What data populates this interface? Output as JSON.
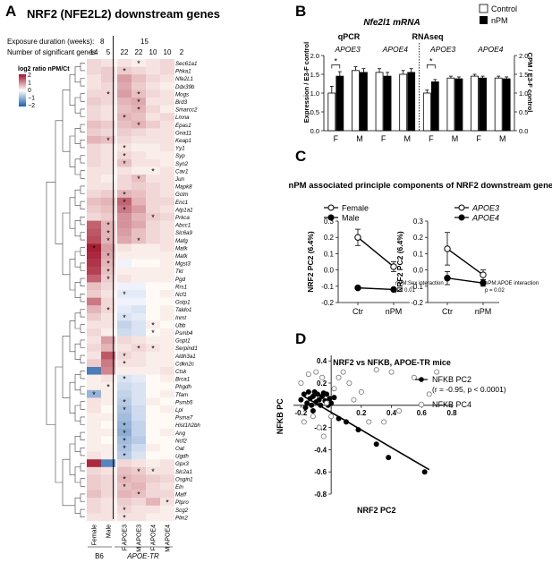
{
  "panels": {
    "a": "A",
    "b": "B",
    "c": "C",
    "d": "D"
  },
  "heatmap": {
    "title": "NRF2 (NFE2L2) downstream genes",
    "exposure_label": "Exposure duration (weeks):",
    "exposure_values": [
      "8",
      "15"
    ],
    "sig_label": "Number of significant genes:",
    "sig_counts": [
      "14",
      "5",
      "22",
      "22",
      "10",
      "10",
      "2"
    ],
    "legend_title": "log2 ratio nPM/Ct",
    "legend_ticks": [
      "2",
      "1",
      "0",
      "−1",
      "−2"
    ],
    "columns": [
      "Female",
      "Male",
      "F APOE3",
      "M APOE3",
      "F APOE4",
      "M APOE4"
    ],
    "group_b6": "B6",
    "group_tr": "APOE-TR",
    "genes": [
      "Sec61a1",
      "Phka1",
      "Nfe2L1",
      "Ddx39b",
      "Mogs",
      "Brd3",
      "Smarcc2",
      "Lmna",
      "Epas1",
      "Gna11",
      "Keap1",
      "Yy1",
      "Syp",
      "Syn2",
      "Cav1",
      "Jun",
      "Mapk8",
      "Gclm",
      "Enc1",
      "Atp1a1",
      "Prkca",
      "Abcc1",
      "Slc6a9",
      "Mafg",
      "Mafk",
      "Mafk",
      "Mgst3",
      "Tkt",
      "Pgd",
      "Rrs1",
      "Ncf1",
      "Gstp1",
      "Taldo1",
      "Inmt",
      "Ubb",
      "Psmb4",
      "Gspt1",
      "Serpind1",
      "Aldh3a1",
      "Cdkn2c",
      "Ctsk",
      "Brca1",
      "Phgdh",
      "Tfam",
      "Psmb5",
      "Lpl",
      "Psma7",
      "Hist1h2bh",
      "Ang",
      "Ncf2",
      "Oat",
      "Ugdh",
      "Gpx3",
      "Slc2a1",
      "Osgin1",
      "Eln",
      "Maff",
      "Ptpro",
      "Scg2",
      "Plin2"
    ],
    "values": [
      [
        0.3,
        0.2,
        0.2,
        0.1,
        0.2,
        0.3
      ],
      [
        0.3,
        0.4,
        0.4,
        0.3,
        0.2,
        0.3
      ],
      [
        0.2,
        0.4,
        0.8,
        0.5,
        0.3,
        0.2
      ],
      [
        0.2,
        0.3,
        0.7,
        0.4,
        0.2,
        0.1
      ],
      [
        0.3,
        0.3,
        0.8,
        0.5,
        0.3,
        0.2
      ],
      [
        0.4,
        0.3,
        0.6,
        0.7,
        0.2,
        0.2
      ],
      [
        0.3,
        0.2,
        0.5,
        0.6,
        0.3,
        0.1
      ],
      [
        0.3,
        0.2,
        0.6,
        0.5,
        0.2,
        0.3
      ],
      [
        0.5,
        0.4,
        0.5,
        0.6,
        0.4,
        0.2
      ],
      [
        0.4,
        0.3,
        0.4,
        0.3,
        0.2,
        0.2
      ],
      [
        0.6,
        0.5,
        0.3,
        0.2,
        0.2,
        0.2
      ],
      [
        0.3,
        0.2,
        0.2,
        0.1,
        0.1,
        0.2
      ],
      [
        0.3,
        0.2,
        0.3,
        0.2,
        0.1,
        0.1
      ],
      [
        0.3,
        0.2,
        0.5,
        0.2,
        0.2,
        0.1
      ],
      [
        0.2,
        0.2,
        0.2,
        0.1,
        0.1,
        0.2
      ],
      [
        0.2,
        0.1,
        0.3,
        0.5,
        0.2,
        0.2
      ],
      [
        0.2,
        0.2,
        0.3,
        0.4,
        0.3,
        0.2
      ],
      [
        0.3,
        0.4,
        0.6,
        0.5,
        0.3,
        0.2
      ],
      [
        0.5,
        0.6,
        1.3,
        0.6,
        0.3,
        0.3
      ],
      [
        0.4,
        0.5,
        1.1,
        0.8,
        0.3,
        0.2
      ],
      [
        0.3,
        0.4,
        0.9,
        0.6,
        0.4,
        0.3
      ],
      [
        1.3,
        0.6,
        0.9,
        0.7,
        0.3,
        0.2
      ],
      [
        1.4,
        0.6,
        0.8,
        0.5,
        0.3,
        0.2
      ],
      [
        1.5,
        0.6,
        0.7,
        0.5,
        0.3,
        0.2
      ],
      [
        1.9,
        0.8,
        0.2,
        0.1,
        0.1,
        0.2
      ],
      [
        1.8,
        0.7,
        0.1,
        0.1,
        0.1,
        0.1
      ],
      [
        1.7,
        0.6,
        -0.1,
        0.0,
        0.0,
        0.1
      ],
      [
        1.6,
        0.5,
        0.1,
        0.1,
        0.1,
        0.1
      ],
      [
        1.3,
        0.4,
        0.2,
        0.1,
        0.1,
        0.1
      ],
      [
        0.5,
        0.3,
        -0.1,
        -0.1,
        0.0,
        0.0
      ],
      [
        0.4,
        0.2,
        -0.2,
        -0.2,
        0.0,
        0.1
      ],
      [
        1.1,
        0.3,
        -0.1,
        -0.1,
        0.0,
        0.0
      ],
      [
        0.6,
        0.3,
        -0.2,
        -0.3,
        0.0,
        0.1
      ],
      [
        0.4,
        0.2,
        -0.3,
        -0.2,
        0.0,
        0.1
      ],
      [
        0.2,
        0.2,
        -0.5,
        -0.3,
        0.1,
        0.0
      ],
      [
        0.3,
        0.1,
        -0.4,
        -0.3,
        0.0,
        0.1
      ],
      [
        0.2,
        0.8,
        0.3,
        0.2,
        0.1,
        0.1
      ],
      [
        0.3,
        0.6,
        0.2,
        0.3,
        0.2,
        0.1
      ],
      [
        0.2,
        1.4,
        0.3,
        0.2,
        0.1,
        0.1
      ],
      [
        0.4,
        1.1,
        0.2,
        0.2,
        0.1,
        0.1
      ],
      [
        -1.6,
        1.0,
        0.1,
        0.1,
        0.1,
        0.2
      ],
      [
        0.1,
        0.2,
        -0.3,
        -0.2,
        0.0,
        0.1
      ],
      [
        0.1,
        0.1,
        -0.4,
        -0.3,
        0.0,
        0.0
      ],
      [
        -0.9,
        0.1,
        -0.5,
        -0.3,
        0.0,
        0.1
      ],
      [
        0.2,
        0.1,
        -0.6,
        -0.3,
        0.1,
        0.0
      ],
      [
        0.2,
        0.0,
        -0.7,
        -0.4,
        0.0,
        0.1
      ],
      [
        0.1,
        0.1,
        -0.8,
        -0.4,
        0.0,
        0.0
      ],
      [
        0.1,
        0.0,
        -0.9,
        -0.5,
        0.0,
        0.0
      ],
      [
        0.1,
        0.1,
        -1.0,
        -0.5,
        0.0,
        0.1
      ],
      [
        0.1,
        0.0,
        -0.8,
        -0.6,
        0.0,
        0.0
      ],
      [
        0.1,
        0.1,
        -0.7,
        -0.4,
        0.1,
        0.0
      ],
      [
        0.2,
        0.1,
        -0.6,
        -0.3,
        0.0,
        0.0
      ],
      [
        1.8,
        -1.5,
        0.3,
        0.2,
        0.1,
        0.2
      ],
      [
        0.3,
        0.2,
        0.5,
        0.4,
        0.2,
        0.2
      ],
      [
        0.4,
        0.3,
        0.6,
        0.5,
        0.4,
        0.3
      ],
      [
        0.4,
        0.3,
        0.5,
        0.6,
        0.3,
        0.2
      ],
      [
        0.5,
        0.3,
        0.6,
        0.5,
        0.3,
        0.3
      ],
      [
        0.3,
        0.2,
        0.4,
        0.3,
        0.6,
        0.2
      ],
      [
        0.3,
        0.2,
        0.3,
        0.2,
        0.2,
        0.1
      ],
      [
        0.2,
        0.2,
        0.2,
        0.2,
        0.1,
        0.1
      ]
    ],
    "stars": [
      [
        0,
        3
      ],
      [
        1,
        2
      ],
      [
        4,
        1
      ],
      [
        4,
        3
      ],
      [
        5,
        3
      ],
      [
        6,
        3
      ],
      [
        7,
        2
      ],
      [
        8,
        3
      ],
      [
        10,
        1
      ],
      [
        11,
        2
      ],
      [
        12,
        2
      ],
      [
        13,
        2
      ],
      [
        14,
        4
      ],
      [
        15,
        3
      ],
      [
        17,
        2
      ],
      [
        18,
        2
      ],
      [
        19,
        2
      ],
      [
        20,
        4
      ],
      [
        21,
        1
      ],
      [
        22,
        1
      ],
      [
        23,
        1
      ],
      [
        23,
        3
      ],
      [
        24,
        0
      ],
      [
        25,
        1
      ],
      [
        26,
        1
      ],
      [
        27,
        1
      ],
      [
        28,
        1
      ],
      [
        30,
        2
      ],
      [
        32,
        1
      ],
      [
        33,
        2
      ],
      [
        34,
        4
      ],
      [
        35,
        4
      ],
      [
        37,
        3
      ],
      [
        37,
        4
      ],
      [
        38,
        2
      ],
      [
        39,
        2
      ],
      [
        41,
        2
      ],
      [
        42,
        1
      ],
      [
        43,
        0
      ],
      [
        44,
        2
      ],
      [
        45,
        2
      ],
      [
        47,
        2
      ],
      [
        48,
        2
      ],
      [
        49,
        2
      ],
      [
        50,
        2
      ],
      [
        51,
        2
      ],
      [
        53,
        3
      ],
      [
        53,
        4
      ],
      [
        54,
        2
      ],
      [
        55,
        2
      ],
      [
        56,
        3
      ],
      [
        57,
        5
      ],
      [
        58,
        2
      ],
      [
        59,
        2
      ]
    ]
  },
  "panel_b": {
    "title": "Nfe2l1 mRNA",
    "legend": [
      "Control",
      "nPM"
    ],
    "method_left": "qPCR",
    "method_right": "RNAseq",
    "group_labels": [
      "APOE3",
      "APOE4",
      "APOE3",
      "APOE4"
    ],
    "ylabel_left": "Expression / E3-F control",
    "ylabel_right": "CPM / E3-F control",
    "yticks": [
      "0.0",
      "0.5",
      "1.0",
      "1.5",
      "2.0"
    ],
    "xlabels": [
      "F",
      "M",
      "F",
      "M",
      "F",
      "M",
      "F",
      "M"
    ],
    "star": "*"
  },
  "panel_c": {
    "title": "nPM associated principle components of NRF2 downstream genes",
    "left_legend": [
      "Female",
      "Male"
    ],
    "right_legend": [
      "APOE3",
      "APOE4"
    ],
    "ylabel": "NRF2 PC2 (6.4%)",
    "xlabels": [
      "Ctr",
      "nPM"
    ],
    "yticks": [
      "0.3",
      "0.2",
      "0.1",
      "0.0",
      "-0.1",
      "-0.2"
    ],
    "left_note1": "nPM:Sex interaction",
    "left_note2": "p = 0.01",
    "right_note1": "nPM:APOE interaction",
    "right_note2": "p = 0.02"
  },
  "panel_d": {
    "title": "NRF2 vs NFKB, APOE-TR mice",
    "legend_pc2": "NFKB PC2",
    "legend_stat": "(r = -0.95, p < 0.0001)",
    "legend_pc4": "NFKB PC4",
    "xlabel": "NRF2 PC2",
    "ylabel": "NFKB PC",
    "xticks": [
      "-0.2",
      "0.2",
      "0.4",
      "0.6",
      "0.8"
    ],
    "yticks": [
      "0.4",
      "0.2",
      "-0.2",
      "-0.4",
      "-0.6",
      "-0.8"
    ]
  },
  "chart_data": [
    {
      "type": "heatmap",
      "title": "NRF2 (NFE2L2) downstream genes",
      "note": "values = log2 ratio nPM/Ct per gene (rows) and group (columns); see heatmap.values",
      "range": [
        -2,
        2
      ]
    },
    {
      "type": "bar",
      "title": "Nfe2l1 mRNA",
      "categories": [
        "qPCR APOE3 F",
        "qPCR APOE3 M",
        "qPCR APOE4 F",
        "qPCR APOE4 M",
        "RNAseq APOE3 F",
        "RNAseq APOE3 M",
        "RNAseq APOE4 F",
        "RNAseq APOE4 M"
      ],
      "series": [
        {
          "name": "Control",
          "values": [
            1.0,
            1.6,
            1.55,
            1.5,
            1.0,
            1.4,
            1.45,
            1.4
          ],
          "errors": [
            0.18,
            0.1,
            0.1,
            0.1,
            0.08,
            0.05,
            0.05,
            0.05
          ]
        },
        {
          "name": "nPM",
          "values": [
            1.45,
            1.55,
            1.45,
            1.55,
            1.3,
            1.38,
            1.4,
            1.38
          ],
          "errors": [
            0.12,
            0.1,
            0.1,
            0.1,
            0.06,
            0.05,
            0.05,
            0.05
          ]
        }
      ],
      "ylim": [
        0,
        2
      ]
    },
    {
      "type": "line",
      "x": [
        "Ctr",
        "nPM"
      ],
      "series": [
        {
          "name": "Female",
          "values": [
            0.2,
            0.02
          ],
          "errors": [
            0.05,
            0.03
          ]
        },
        {
          "name": "Male",
          "values": [
            -0.11,
            -0.12
          ],
          "errors": [
            0.01,
            0.01
          ]
        }
      ],
      "ylim": [
        -0.2,
        0.3
      ]
    },
    {
      "type": "line",
      "x": [
        "Ctr",
        "nPM"
      ],
      "series": [
        {
          "name": "APOE3",
          "values": [
            0.13,
            -0.03
          ],
          "errors": [
            0.1,
            0.03
          ]
        },
        {
          "name": "APOE4",
          "values": [
            -0.05,
            -0.08
          ],
          "errors": [
            0.04,
            0.02
          ]
        }
      ],
      "ylim": [
        -0.2,
        0.3
      ]
    },
    {
      "type": "scatter",
      "title": "NRF2 vs NFKB, APOE-TR mice",
      "xlabel": "NRF2 PC2",
      "ylabel": "NFKB PC",
      "xlim": [
        -0.25,
        0.8
      ],
      "ylim": [
        -0.8,
        0.45
      ],
      "series": [
        {
          "name": "NFKB PC2",
          "points": [
            [
              -0.2,
              0.05
            ],
            [
              -0.18,
              0.1
            ],
            [
              -0.16,
              0.02
            ],
            [
              -0.15,
              0.12
            ],
            [
              -0.14,
              0.06
            ],
            [
              -0.13,
              0.0
            ],
            [
              -0.12,
              0.08
            ],
            [
              -0.11,
              0.12
            ],
            [
              -0.1,
              0.03
            ],
            [
              -0.09,
              0.1
            ],
            [
              -0.08,
              0.05
            ],
            [
              -0.07,
              0.0
            ],
            [
              -0.06,
              0.08
            ],
            [
              -0.05,
              0.11
            ],
            [
              -0.04,
              0.04
            ],
            [
              -0.03,
              0.1
            ],
            [
              -0.02,
              0.0
            ],
            [
              -0.01,
              0.06
            ],
            [
              0.0,
              0.02
            ],
            [
              0.02,
              0.07
            ],
            [
              -0.17,
              -0.02
            ],
            [
              -0.12,
              -0.05
            ],
            [
              0.05,
              -0.12
            ],
            [
              0.1,
              -0.15
            ],
            [
              0.18,
              -0.22
            ],
            [
              0.3,
              -0.35
            ],
            [
              0.38,
              -0.47
            ],
            [
              0.62,
              -0.6
            ]
          ]
        },
        {
          "name": "NFKB PC4",
          "points": [
            [
              -0.2,
              0.2
            ],
            [
              -0.18,
              -0.15
            ],
            [
              -0.15,
              0.28
            ],
            [
              -0.12,
              -0.1
            ],
            [
              -0.1,
              0.3
            ],
            [
              -0.08,
              -0.2
            ],
            [
              -0.06,
              0.25
            ],
            [
              -0.05,
              -0.28
            ],
            [
              -0.03,
              0.02
            ],
            [
              0.0,
              -0.1
            ],
            [
              0.02,
              0.15
            ],
            [
              0.05,
              0.25
            ],
            [
              0.08,
              0.3
            ],
            [
              0.12,
              0.2
            ],
            [
              0.15,
              0.05
            ],
            [
              0.2,
              0.12
            ],
            [
              0.25,
              -0.15
            ],
            [
              0.3,
              0.32
            ],
            [
              0.35,
              -0.15
            ],
            [
              0.4,
              0.3
            ],
            [
              0.45,
              -0.05
            ],
            [
              0.55,
              0.25
            ],
            [
              0.65,
              0.1
            ],
            [
              0.7,
              0.3
            ]
          ]
        }
      ]
    }
  ]
}
